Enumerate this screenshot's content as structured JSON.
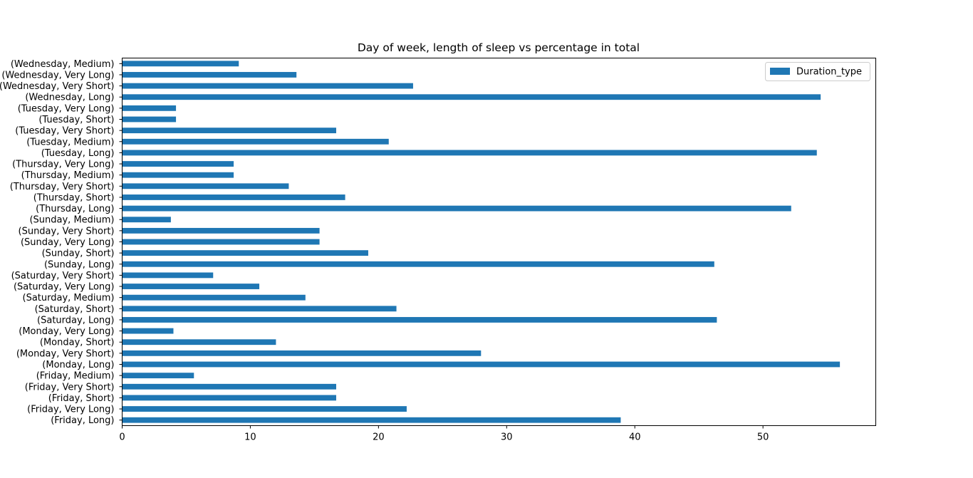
{
  "chart_data": {
    "type": "bar",
    "orientation": "horizontal",
    "title": "Day of week, length of sleep vs percentage in total",
    "xlabel": "",
    "ylabel": "",
    "xlim": [
      0,
      58.8
    ],
    "xticks": [
      0,
      10,
      20,
      30,
      40,
      50
    ],
    "grid": false,
    "legend_position": "top-right",
    "bar_color": "#1f77b4",
    "categories": [
      "(Friday, Long)",
      "(Friday, Very Long)",
      "(Friday, Short)",
      "(Friday, Very Short)",
      "(Friday, Medium)",
      "(Monday, Long)",
      "(Monday, Very Short)",
      "(Monday, Short)",
      "(Monday, Very Long)",
      "(Saturday, Long)",
      "(Saturday, Short)",
      "(Saturday, Medium)",
      "(Saturday, Very Long)",
      "(Saturday, Very Short)",
      "(Sunday, Long)",
      "(Sunday, Short)",
      "(Sunday, Very Long)",
      "(Sunday, Very Short)",
      "(Sunday, Medium)",
      "(Thursday, Long)",
      "(Thursday, Short)",
      "(Thursday, Very Short)",
      "(Thursday, Medium)",
      "(Thursday, Very Long)",
      "(Tuesday, Long)",
      "(Tuesday, Medium)",
      "(Tuesday, Very Short)",
      "(Tuesday, Short)",
      "(Tuesday, Very Long)",
      "(Wednesday, Long)",
      "(Wednesday, Very Short)",
      "(Wednesday, Very Long)",
      "(Wednesday, Medium)"
    ],
    "series": [
      {
        "name": "Duration_type",
        "values": [
          38.9,
          22.2,
          16.7,
          16.7,
          5.6,
          56.0,
          28.0,
          12.0,
          4.0,
          46.4,
          21.4,
          14.3,
          10.7,
          7.1,
          46.2,
          19.2,
          15.4,
          15.4,
          3.8,
          52.2,
          17.4,
          13.0,
          8.7,
          8.7,
          54.2,
          20.8,
          16.7,
          4.2,
          4.2,
          54.5,
          22.7,
          13.6,
          9.1
        ]
      }
    ]
  }
}
